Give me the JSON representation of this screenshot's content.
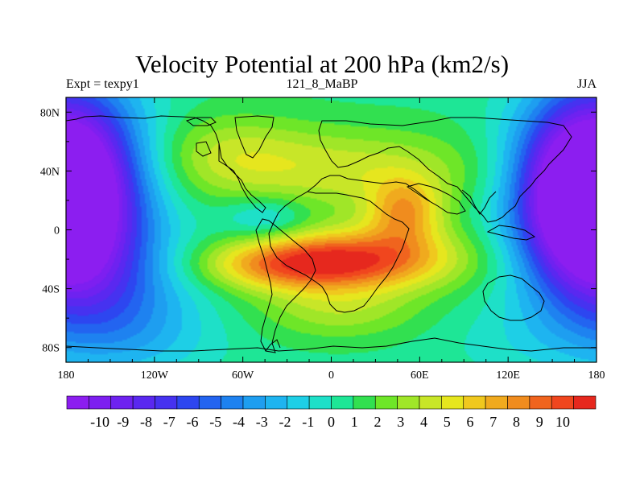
{
  "title": "Velocity Potential at 200 hPa (km2/s)",
  "subtitle_left": "Expt = texpy1",
  "subtitle_center": "121_8_MaBP",
  "subtitle_right": "JJA",
  "chart_data": {
    "type": "heatmap",
    "field": "velocity potential, 200 hPa (km2/s), color-filled contours",
    "x_range": [
      -180,
      180
    ],
    "y_range": [
      -90,
      90
    ],
    "x_tick_labels": [
      "180",
      "120W",
      "60W",
      "0",
      "60E",
      "120E",
      "180"
    ],
    "x_tick_values": [
      -180,
      -120,
      -60,
      0,
      60,
      120,
      180
    ],
    "y_tick_labels": [
      "80N",
      "40N",
      "0",
      "40S",
      "80S"
    ],
    "y_tick_values": [
      80,
      40,
      0,
      -40,
      -80
    ],
    "colorbar_labels": [
      "-10",
      "-9",
      "-8",
      "-7",
      "-6",
      "-5",
      "-4",
      "-3",
      "-2",
      "-1",
      "0",
      "1",
      "2",
      "3",
      "4",
      "5",
      "6",
      "7",
      "8",
      "9",
      "10"
    ],
    "colorbar_colors": [
      "#8c1ef0",
      "#7d1ff0",
      "#6e22f0",
      "#5a28f0",
      "#4632f0",
      "#2d46f0",
      "#2364f0",
      "#1e82f0",
      "#1e9ef0",
      "#1eb4f0",
      "#1ecfe6",
      "#1ee0c8",
      "#1ee696",
      "#32e050",
      "#6ee628",
      "#a0e628",
      "#c8e628",
      "#e6e61e",
      "#f0c81e",
      "#f0aa1e",
      "#f08c1e",
      "#f0641e",
      "#f0461e",
      "#e6281e"
    ],
    "extrema": [
      {
        "kind": "min",
        "lon": -170,
        "lat": 30,
        "value": -10.2
      },
      {
        "kind": "min",
        "lon": 165,
        "lat": 20,
        "value": -9.5
      },
      {
        "kind": "max",
        "lon": 30,
        "lat": -20,
        "value": 10.3
      },
      {
        "kind": "max",
        "lon": -30,
        "lat": -25,
        "value": 9.4
      },
      {
        "kind": "max",
        "lon": 55,
        "lat": 15,
        "value": 8.6
      }
    ],
    "grid": false
  }
}
